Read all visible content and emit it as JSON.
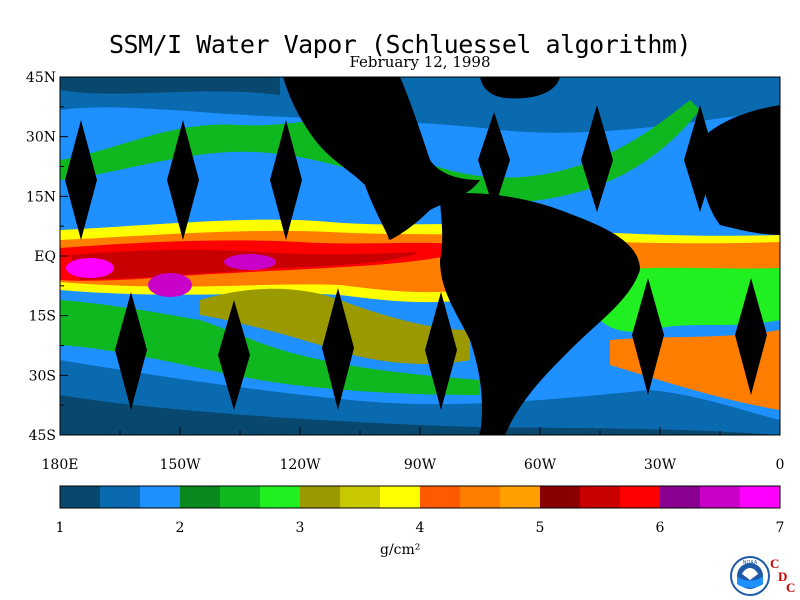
{
  "chart_data": {
    "type": "heatmap",
    "title": "SSM/I Water Vapor (Schluessel algorithm)",
    "subtitle": "February 12, 1998",
    "x_ticks": [
      "180E",
      "150W",
      "120W",
      "90W",
      "60W",
      "30W",
      "0"
    ],
    "x_values": [
      -180,
      -150,
      -120,
      -90,
      -60,
      -30,
      0
    ],
    "y_ticks": [
      "45N",
      "30N",
      "15N",
      "EQ",
      "15S",
      "30S",
      "45S"
    ],
    "y_values": [
      45,
      30,
      15,
      0,
      -15,
      -30,
      -45
    ],
    "xlim": [
      -180,
      0
    ],
    "ylim": [
      -45,
      45
    ],
    "colorbar": {
      "ticks": [
        "1",
        "2",
        "3",
        "4",
        "5",
        "6",
        "7"
      ],
      "range": [
        1,
        7
      ],
      "unit_label": "g/cm²",
      "colors": [
        "#08476e",
        "#0a6ab0",
        "#1e90ff",
        "#0a8a1e",
        "#10b820",
        "#20f020",
        "#9a9a00",
        "#c8c800",
        "#ffff00",
        "#ff5a00",
        "#ff7e00",
        "#ffa000",
        "#8a0000",
        "#c80000",
        "#ff0000",
        "#8a0090",
        "#c800c8",
        "#ff00ff"
      ]
    },
    "value_field_note": ""
  },
  "colors": {
    "land": "#000000",
    "ocean_low": "#0a6ab0",
    "ocean_mid": "#1e90ff",
    "tropics": "#ff0000",
    "max": "#ff00ff"
  },
  "logo": {
    "noaa_text": "NOAA",
    "cdc_c1": "C",
    "cdc_d": "D",
    "cdc_c2": "C"
  }
}
